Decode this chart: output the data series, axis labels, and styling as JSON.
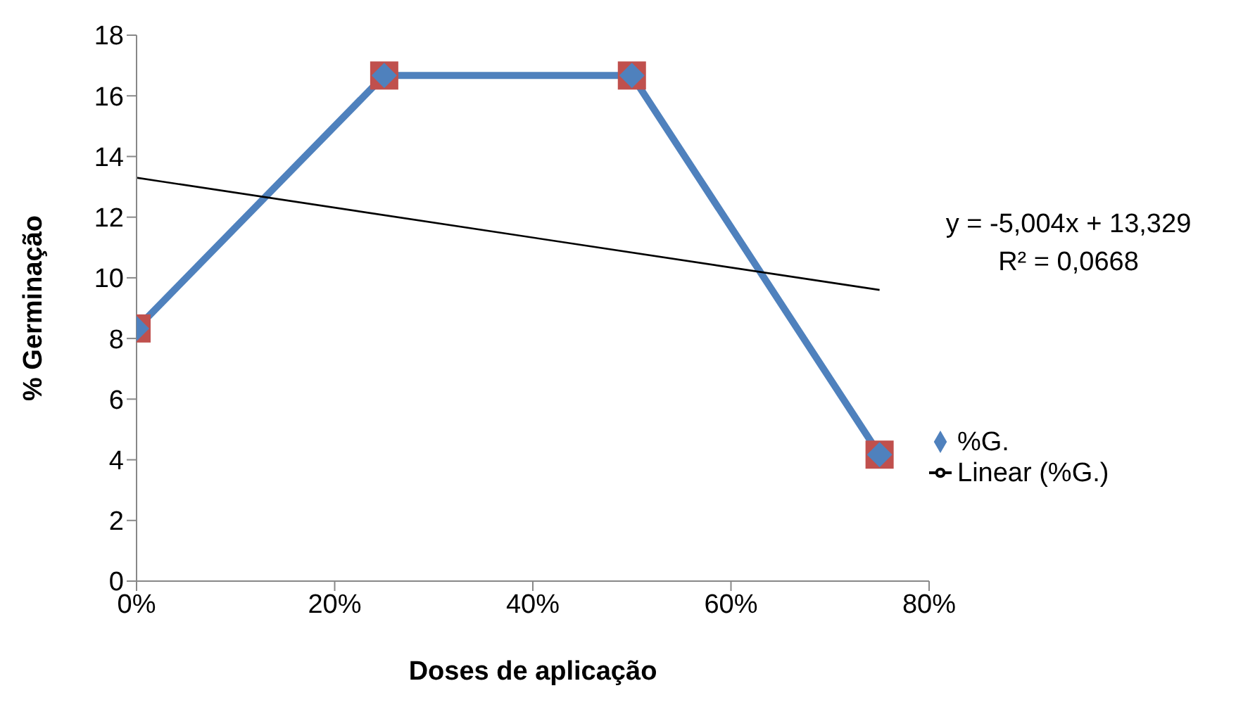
{
  "chart_data": {
    "type": "line",
    "xlabel": "Doses de aplicação",
    "ylabel": "% Germinação",
    "x": [
      0,
      0.25,
      0.5,
      0.75
    ],
    "series": [
      {
        "type": "scatter",
        "color": "#c0504d",
        "marker": "square",
        "values": [
          8.33,
          16.67,
          16.67,
          4.17
        ]
      },
      {
        "name": "%G.",
        "color": "#4f81bd",
        "marker": "diamond",
        "values": [
          8.33,
          16.67,
          16.67,
          4.17
        ]
      },
      {
        "name": "Linear (%G.)",
        "type": "line",
        "color": "#000000",
        "marker": "none",
        "x": [
          0,
          0.75
        ],
        "values": [
          13.3,
          9.6
        ]
      }
    ],
    "xlim": [
      0,
      0.8
    ],
    "xticks": [
      {
        "value": 0,
        "label": "0%"
      },
      {
        "value": 0.2,
        "label": "20%"
      },
      {
        "value": 0.4,
        "label": "40%"
      },
      {
        "value": 0.6,
        "label": "60%"
      },
      {
        "value": 0.8,
        "label": "80%"
      }
    ],
    "ylim": [
      0,
      18
    ],
    "yticks": [
      0,
      2,
      4,
      6,
      8,
      10,
      12,
      14,
      16,
      18
    ],
    "annotations": [
      "y = -5,004x + 13,329",
      "R² = 0,0668"
    ],
    "legend": "right",
    "grid": false
  }
}
